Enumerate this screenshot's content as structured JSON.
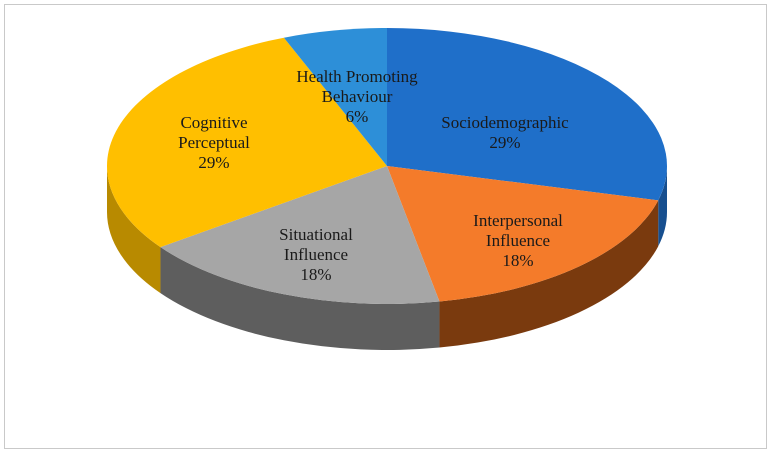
{
  "chart_data": {
    "type": "pie",
    "title": "",
    "slices": [
      {
        "name": "Sociodemographic",
        "lines": [
          "Sociodemographic",
          "29%"
        ],
        "value": 29,
        "color": "#1f6fc9",
        "side": "#174f8f"
      },
      {
        "name": "Interpersonal Influence",
        "lines": [
          "Interpersonal",
          "Influence",
          "18%"
        ],
        "value": 18,
        "color": "#f47b2a",
        "side": "#7a3a0e"
      },
      {
        "name": "Situational Influence",
        "lines": [
          "Situational",
          "Influence",
          "18%"
        ],
        "value": 18,
        "color": "#a6a6a6",
        "side": "#5e5e5e"
      },
      {
        "name": "Cognitive Perceptual",
        "lines": [
          "Cognitive",
          "Perceptual",
          "29%"
        ],
        "value": 29,
        "color": "#ffbf00",
        "side": "#b88a00"
      },
      {
        "name": "Health Promoting Behaviour",
        "lines": [
          "Health Promoting",
          "Behaviour",
          "6%"
        ],
        "value": 6,
        "color": "#2d8fd8",
        "side": "#1e5f95"
      }
    ],
    "legend": "none",
    "grid": false
  }
}
